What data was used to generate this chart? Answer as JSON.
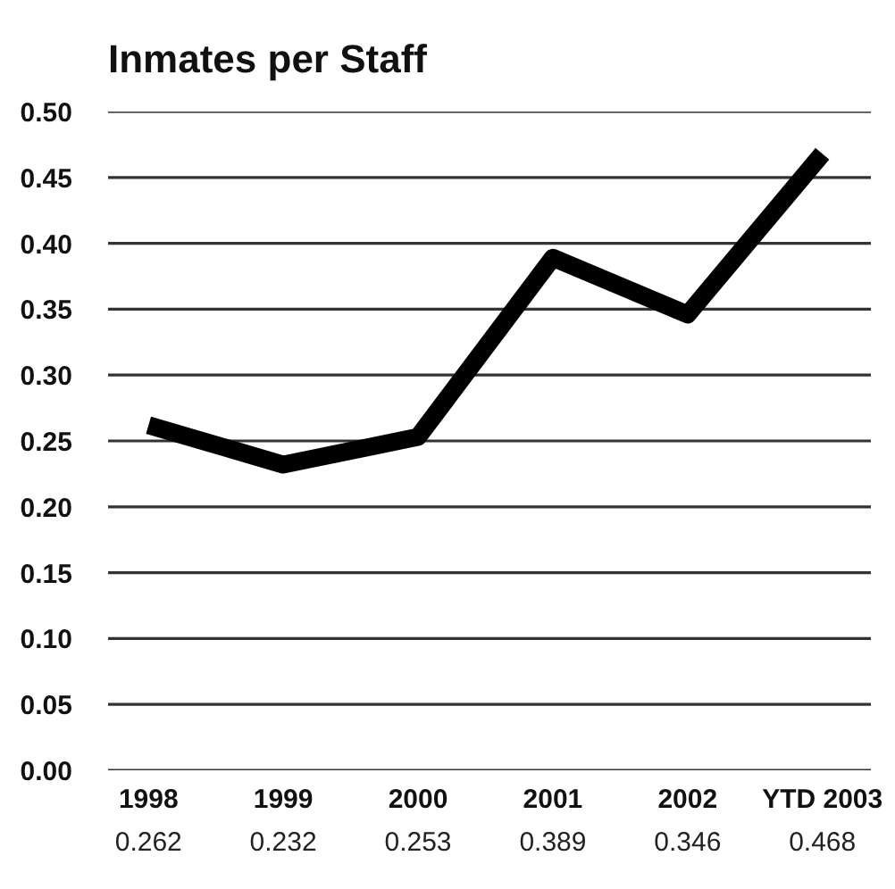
{
  "chart_data": {
    "type": "line",
    "title": "Inmates per Staff",
    "categories": [
      "1998",
      "1999",
      "2000",
      "2001",
      "2002",
      "YTD 2003"
    ],
    "series": [
      {
        "color": "#000000",
        "values": [
          0.262,
          0.232,
          0.253,
          0.389,
          0.346,
          0.468
        ]
      }
    ],
    "ylim": [
      0,
      0.5
    ],
    "yticks": [
      {
        "value": 0,
        "label": "0.00"
      },
      {
        "value": 0.05,
        "label": "0.05"
      },
      {
        "value": 0.1,
        "label": "0.10"
      },
      {
        "value": 0.15,
        "label": "0.15"
      },
      {
        "value": 0.2,
        "label": "0.20"
      },
      {
        "value": 0.25,
        "label": "0.25"
      },
      {
        "value": 0.3,
        "label": "0.30"
      },
      {
        "value": 0.35,
        "label": "0.35"
      },
      {
        "value": 0.4,
        "label": "0.40"
      },
      {
        "value": 0.45,
        "label": "0.45"
      },
      {
        "value": 0.5,
        "label": "0.50"
      }
    ],
    "grid": "y",
    "line_style": "solid",
    "data_labels": true
  }
}
